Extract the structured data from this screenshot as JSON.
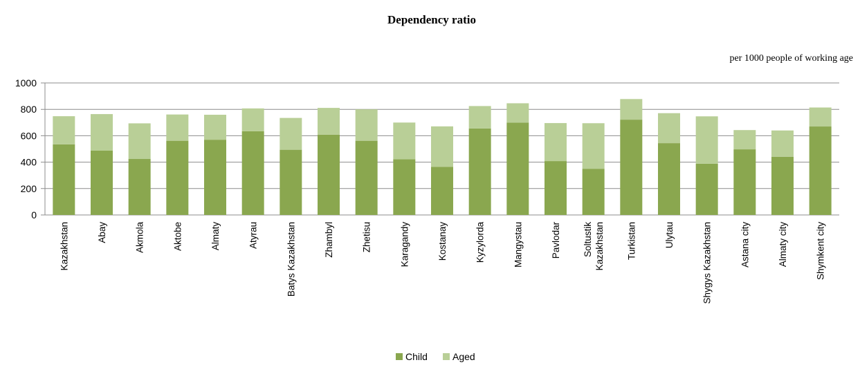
{
  "chart_data": {
    "type": "bar",
    "stacked": true,
    "title": "Dependency ratio",
    "subtitle": "per 1000 people of working age",
    "xlabel": "",
    "ylabel": "",
    "ylim": [
      0,
      1000
    ],
    "yticks": [
      0,
      200,
      400,
      600,
      800,
      1000
    ],
    "grid": true,
    "legend_position": "bottom",
    "categories": [
      [
        "Kazakhstan"
      ],
      [
        "Abay"
      ],
      [
        "Akmola"
      ],
      [
        "Aktobe"
      ],
      [
        "Almaty"
      ],
      [
        "Atyrau"
      ],
      [
        "Batys Kazakhstan"
      ],
      [
        "Zhambyl"
      ],
      [
        "Zhetisu"
      ],
      [
        "Karagandy"
      ],
      [
        "Kostanay"
      ],
      [
        "Kyzylorda"
      ],
      [
        "Mangystau"
      ],
      [
        "Pavlodar"
      ],
      [
        "Soltustik",
        "Kazakhstan"
      ],
      [
        "Turkistan"
      ],
      [
        "Ulytau"
      ],
      [
        "Shygys Kazakhstan"
      ],
      [
        "Astana city"
      ],
      [
        "Almaty city"
      ],
      [
        "Shymkent city"
      ]
    ],
    "series": [
      {
        "name": "Child",
        "color": "#8aa74f",
        "values": [
          535,
          487,
          424,
          562,
          570,
          634,
          494,
          608,
          562,
          422,
          365,
          655,
          700,
          408,
          350,
          722,
          544,
          388,
          497,
          441,
          670
        ]
      },
      {
        "name": "Aged",
        "color": "#b9cf97",
        "values": [
          213,
          277,
          270,
          199,
          189,
          173,
          241,
          203,
          238,
          278,
          306,
          170,
          146,
          288,
          345,
          156,
          227,
          359,
          146,
          199,
          144
        ]
      }
    ]
  }
}
